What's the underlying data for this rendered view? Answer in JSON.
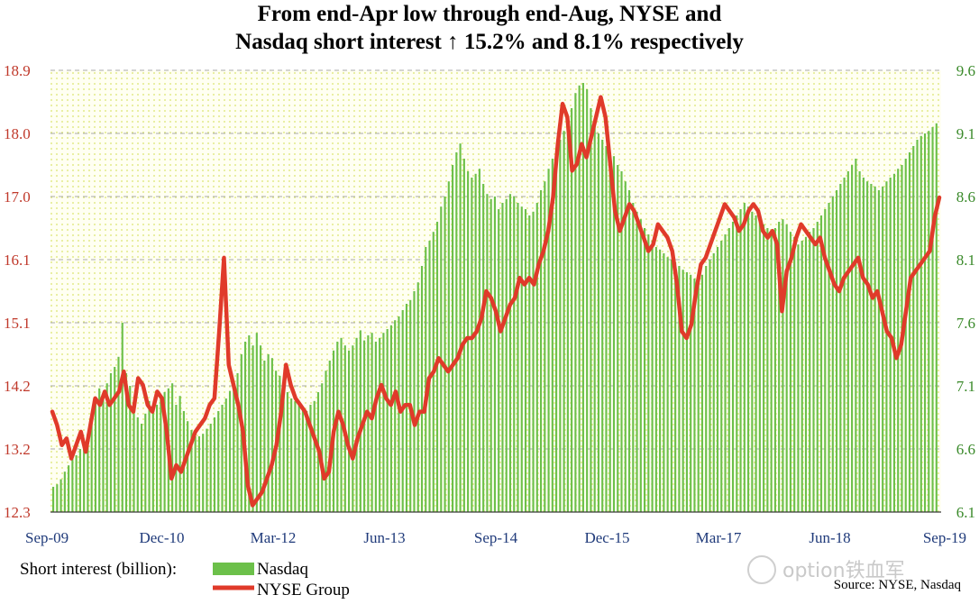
{
  "chart_data": {
    "type": "bar+line",
    "title_lines": [
      "From end-Apr low through end-Aug, NYSE and",
      "Nasdaq short interest ↑ 15.2% and 8.1% respectively"
    ],
    "left_axis": {
      "ylim": [
        12.3,
        18.9
      ],
      "ticks": [
        "18.9",
        "18.0",
        "17.0",
        "16.1",
        "15.1",
        "14.2",
        "13.2",
        "12.3"
      ],
      "color": "#c0392b"
    },
    "right_axis": {
      "ylim": [
        6.1,
        9.6
      ],
      "ticks": [
        "9.6",
        "9.1",
        "8.6",
        "8.1",
        "7.6",
        "7.1",
        "6.6",
        "6.1"
      ],
      "color": "#3a8a2a"
    },
    "x_ticks": [
      "Sep-09",
      "Dec-10",
      "Mar-12",
      "Jun-13",
      "Sep-14",
      "Dec-15",
      "Mar-17",
      "Jun-18",
      "Sep-19"
    ],
    "grid": true,
    "legend": {
      "label": "Short interest (billion):",
      "items": [
        {
          "name": "Nasdaq",
          "color": "#6cc04a",
          "type": "bar",
          "axis": "right"
        },
        {
          "name": "NYSE Group",
          "color": "#e03a2a",
          "type": "line",
          "axis": "left"
        }
      ]
    },
    "source": "Source: NYSE, Nasdaq",
    "watermark": "option铁血军",
    "series": [
      {
        "name": "Nasdaq",
        "type": "bar",
        "values": [
          6.3,
          6.32,
          6.36,
          6.42,
          6.47,
          6.52,
          6.55,
          6.6,
          6.65,
          6.72,
          6.82,
          7.0,
          7.08,
          7.02,
          7.12,
          7.2,
          7.25,
          7.33,
          7.6,
          7.2,
          7.1,
          6.92,
          6.85,
          6.8,
          6.88,
          6.98,
          6.92,
          6.95,
          7.0,
          7.05,
          7.08,
          7.12,
          6.95,
          7.02,
          6.9,
          6.82,
          6.75,
          6.7,
          6.7,
          6.72,
          6.76,
          6.8,
          6.85,
          6.9,
          6.95,
          7.0,
          7.06,
          7.12,
          7.2,
          7.35,
          7.45,
          7.5,
          7.42,
          7.52,
          7.42,
          7.3,
          7.35,
          7.32,
          7.22,
          7.18,
          7.1,
          7.05,
          7.0,
          6.98,
          6.95,
          6.92,
          6.9,
          6.95,
          6.98,
          7.05,
          7.12,
          7.22,
          7.3,
          7.38,
          7.45,
          7.48,
          7.42,
          7.38,
          7.42,
          7.48,
          7.54,
          7.46,
          7.5,
          7.52,
          7.45,
          7.48,
          7.52,
          7.55,
          7.58,
          7.62,
          7.65,
          7.7,
          7.75,
          7.78,
          7.85,
          7.92,
          8.05,
          8.2,
          8.25,
          8.32,
          8.4,
          8.52,
          8.6,
          8.72,
          8.85,
          8.95,
          9.02,
          8.9,
          8.8,
          8.75,
          8.78,
          8.82,
          8.7,
          8.62,
          8.58,
          8.6,
          8.5,
          8.55,
          8.58,
          8.62,
          8.6,
          8.55,
          8.52,
          8.5,
          8.45,
          8.48,
          8.55,
          8.65,
          8.72,
          8.82,
          8.9,
          8.98,
          9.05,
          9.12,
          9.2,
          9.3,
          9.42,
          9.48,
          9.5,
          9.45,
          9.3,
          9.2,
          9.1,
          9.05,
          9.0,
          8.95,
          8.92,
          8.85,
          8.8,
          8.72,
          8.65,
          8.55,
          8.48,
          8.42,
          8.35,
          8.3,
          8.25,
          8.2,
          8.18,
          8.15,
          8.12,
          8.1,
          8.08,
          8.05,
          8.02,
          8.0,
          7.98,
          7.95,
          7.92,
          7.98,
          8.05,
          8.1,
          8.15,
          8.2,
          8.25,
          8.3,
          8.35,
          8.4,
          8.45,
          8.5,
          8.55,
          8.52,
          8.48,
          8.45,
          8.42,
          8.38,
          8.35,
          8.32,
          8.35,
          8.4,
          8.42,
          8.38,
          8.32,
          8.28,
          8.22,
          8.25,
          8.28,
          8.32,
          8.35,
          8.4,
          8.45,
          8.5,
          8.55,
          8.6,
          8.65,
          8.7,
          8.75,
          8.8,
          8.85,
          8.9,
          8.8,
          8.75,
          8.72,
          8.7,
          8.68,
          8.65,
          8.68,
          8.72,
          8.75,
          8.78,
          8.82,
          8.85,
          8.9,
          8.95,
          9.0,
          9.05,
          9.08,
          9.1,
          9.12,
          9.15,
          9.18
        ]
      },
      {
        "name": "NYSE Group",
        "type": "line",
        "values": [
          13.8,
          13.6,
          13.3,
          13.4,
          13.1,
          13.3,
          13.5,
          13.2,
          13.6,
          14.0,
          13.9,
          14.1,
          13.9,
          14.0,
          14.1,
          14.4,
          13.9,
          13.8,
          14.3,
          14.2,
          13.9,
          13.8,
          14.1,
          14.0,
          13.5,
          12.8,
          13.0,
          12.9,
          13.1,
          13.3,
          13.5,
          13.6,
          13.7,
          13.9,
          14.0,
          15.0,
          16.1,
          14.5,
          14.2,
          13.9,
          13.5,
          12.7,
          12.4,
          12.5,
          12.6,
          12.8,
          13.0,
          13.3,
          13.8,
          14.5,
          14.2,
          14.0,
          13.9,
          13.8,
          13.6,
          13.4,
          13.2,
          12.8,
          12.9,
          13.5,
          13.8,
          13.6,
          13.3,
          13.1,
          13.4,
          13.6,
          13.8,
          13.7,
          14.0,
          14.2,
          14.0,
          13.9,
          14.1,
          13.8,
          13.9,
          13.9,
          13.6,
          13.8,
          13.8,
          14.3,
          14.4,
          14.6,
          14.5,
          14.4,
          14.5,
          14.6,
          14.8,
          14.9,
          14.9,
          15.0,
          15.2,
          15.6,
          15.5,
          15.3,
          15.0,
          15.2,
          15.4,
          15.5,
          15.8,
          15.7,
          15.8,
          15.7,
          16.0,
          16.2,
          16.5,
          17.0,
          17.8,
          18.4,
          18.2,
          17.4,
          17.5,
          17.8,
          17.6,
          17.9,
          18.2,
          18.5,
          18.2,
          17.5,
          16.8,
          16.5,
          16.7,
          16.9,
          16.8,
          16.6,
          16.4,
          16.2,
          16.3,
          16.6,
          16.5,
          16.4,
          16.2,
          15.7,
          15.0,
          14.9,
          15.1,
          15.6,
          16.0,
          16.1,
          16.3,
          16.5,
          16.7,
          16.9,
          16.8,
          16.7,
          16.5,
          16.6,
          16.8,
          16.9,
          16.8,
          16.5,
          16.4,
          16.5,
          16.3,
          15.3,
          15.9,
          16.1,
          16.4,
          16.6,
          16.5,
          16.4,
          16.3,
          16.4,
          16.1,
          15.9,
          15.7,
          15.6,
          15.8,
          15.9,
          16.0,
          16.1,
          15.8,
          15.7,
          15.5,
          15.6,
          15.3,
          15.0,
          14.9,
          14.6,
          14.8,
          15.3,
          15.8,
          15.9,
          16.0,
          16.1,
          16.2,
          16.7,
          17.0
        ]
      }
    ]
  }
}
